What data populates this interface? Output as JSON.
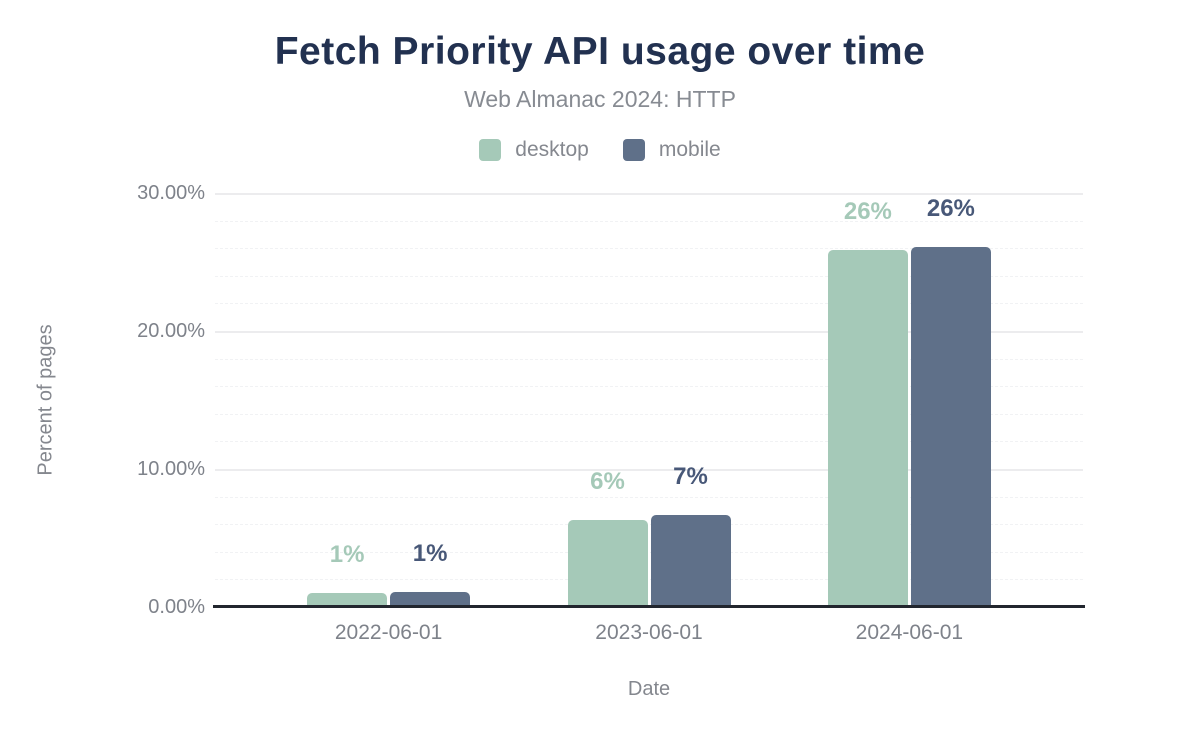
{
  "chart_data": {
    "type": "bar",
    "title": "Fetch Priority API usage over time",
    "subtitle": "Web Almanac 2024: HTTP",
    "xlabel": "Date",
    "ylabel": "Percent of pages",
    "categories": [
      "2022-06-01",
      "2023-06-01",
      "2024-06-01"
    ],
    "series": [
      {
        "name": "desktop",
        "color": "#a5c9b8",
        "label_color": "#a5c9b8",
        "values": [
          1.0,
          6.3,
          25.9
        ],
        "labels": [
          "1%",
          "6%",
          "26%"
        ]
      },
      {
        "name": "mobile",
        "color": "#5f7089",
        "label_color": "#485878",
        "values": [
          1.1,
          6.7,
          26.1
        ],
        "labels": [
          "1%",
          "7%",
          "26%"
        ]
      }
    ],
    "ylim": [
      0,
      30
    ],
    "yticks": [
      {
        "value": 0,
        "label": "0.00%"
      },
      {
        "value": 10,
        "label": "10.00%"
      },
      {
        "value": 20,
        "label": "20.00%"
      },
      {
        "value": 30,
        "label": "30.00%"
      }
    ],
    "minor_grid_step": 2,
    "grid": true,
    "legend_position": "top"
  },
  "colors": {
    "title": "#223150",
    "subtitle": "#878b92",
    "axis_text": "#7e828a",
    "axis_line": "#22262e",
    "major_grid": "#ececee",
    "minor_grid": "#f1f2f4",
    "background": "#ffffff"
  }
}
